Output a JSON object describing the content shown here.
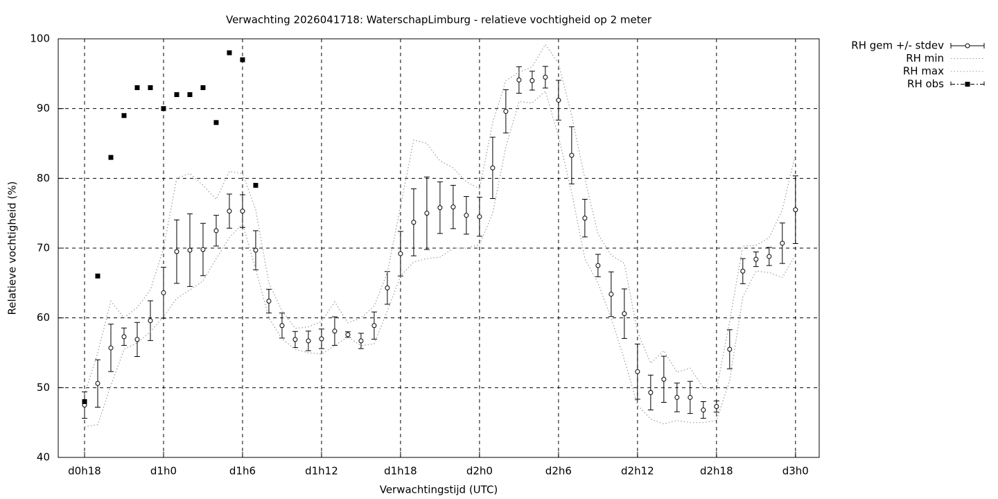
{
  "chart_data": {
    "type": "line",
    "title": "Verwachting 2026041718: WaterschapLimburg - relatieve vochtigheid op 2 meter",
    "x_label": "Verwachtingstijd (UTC)",
    "y_label": "Relatieve vochtigheid (%)",
    "x": [
      18,
      19,
      20,
      21,
      22,
      23,
      24,
      25,
      26,
      27,
      28,
      29,
      30,
      31,
      32,
      33,
      34,
      35,
      36,
      37,
      38,
      39,
      40,
      41,
      42,
      43,
      44,
      45,
      46,
      47,
      48,
      49,
      50,
      51,
      52,
      53,
      54,
      55,
      56,
      57,
      58,
      59,
      60,
      61,
      62,
      63,
      64,
      65,
      66,
      67,
      68,
      69,
      70,
      71,
      72
    ],
    "series": [
      {
        "name": "RH gem +/- stdev",
        "style": "errorbars",
        "color": "#000000",
        "values": [
          47.5,
          50.6,
          55.7,
          57.3,
          56.9,
          59.6,
          63.6,
          69.5,
          69.7,
          69.8,
          72.5,
          75.3,
          75.3,
          69.7,
          62.4,
          58.9,
          56.9,
          56.7,
          57,
          58.1,
          57.6,
          56.7,
          58.9,
          64.3,
          69.2,
          73.7,
          75,
          75.8,
          75.9,
          74.7,
          74.5,
          81.5,
          89.6,
          94.1,
          94,
          94.5,
          91.2,
          83.3,
          74.3,
          67.5,
          63.4,
          60.6,
          52.3,
          49.3,
          51.2,
          48.6,
          48.6,
          46.8,
          47.3,
          55.5,
          66.7,
          68.4,
          68.8,
          70.7,
          75.5
        ],
        "errors": [
          1.9,
          3.4,
          3.4,
          1.25,
          2.45,
          2.85,
          3.65,
          4.55,
          5.2,
          3.75,
          2.2,
          2.45,
          2.35,
          2.8,
          1.7,
          1.8,
          1.15,
          1.4,
          1.4,
          2.05,
          0.4,
          1.1,
          1.95,
          2.35,
          3.2,
          4.8,
          5.2,
          3.7,
          3.1,
          2.7,
          2.8,
          4.4,
          3.1,
          1.9,
          1.35,
          1.55,
          2.85,
          4.1,
          2.7,
          1.6,
          3.2,
          3.55,
          3.95,
          2.5,
          3.3,
          2.05,
          2.3,
          1.2,
          0.8,
          2.8,
          1.8,
          1.05,
          1.3,
          2.9,
          4.85
        ]
      },
      {
        "name": "RH min",
        "style": "dotted",
        "color": "#999999",
        "values": [
          44.4,
          44.7,
          50.3,
          55.5,
          56.4,
          58,
          60.2,
          62.8,
          64,
          65.3,
          68.5,
          71.5,
          73.5,
          67,
          60,
          57,
          55.5,
          55,
          54.8,
          56,
          57.3,
          56,
          56.3,
          61,
          66,
          68,
          68.5,
          68.7,
          70,
          70,
          70.5,
          75,
          84.5,
          91,
          90.8,
          92.5,
          86,
          78,
          68.5,
          65,
          60,
          54,
          47.5,
          45.5,
          44.8,
          45.3,
          45,
          45,
          45.3,
          51,
          63,
          66.7,
          66.5,
          65.8,
          69
        ]
      },
      {
        "name": "RH max",
        "style": "dotted",
        "color": "#999999",
        "values": [
          49,
          55,
          62.4,
          60,
          61.5,
          64,
          70,
          80,
          80.7,
          79,
          77,
          81,
          80.7,
          75.5,
          65,
          61,
          58.5,
          58.7,
          59.5,
          62.3,
          59.3,
          60,
          61.7,
          66.5,
          76,
          85.5,
          85,
          82.5,
          81.5,
          79.5,
          78.5,
          88,
          94,
          95.2,
          96,
          99.2,
          96.5,
          89,
          80,
          72,
          69,
          67.8,
          58,
          53.5,
          55.3,
          52.2,
          52.8,
          50,
          49.7,
          59.5,
          70.3,
          70.4,
          71.5,
          75.5,
          83.5
        ]
      },
      {
        "name": "RH obs",
        "style": "points",
        "color": "#000000",
        "values": [
          48,
          66,
          83,
          89,
          93,
          93,
          90,
          92,
          92,
          93,
          88,
          98,
          97,
          79,
          null,
          null,
          null,
          null,
          null,
          null,
          null,
          null,
          null,
          null,
          null,
          null,
          null,
          null,
          null,
          null,
          null,
          null,
          null,
          null,
          null,
          null,
          null,
          null,
          null,
          null,
          null,
          null,
          null,
          null,
          null,
          null,
          null,
          null,
          null,
          null,
          null,
          null,
          null,
          null,
          null
        ]
      }
    ],
    "xlim": [
      16,
      73.8
    ],
    "ylim": [
      40,
      100
    ],
    "xticks": [
      {
        "value": 18,
        "label": "d0h18"
      },
      {
        "value": 24,
        "label": "d1h0"
      },
      {
        "value": 30,
        "label": "d1h6"
      },
      {
        "value": 36,
        "label": "d1h12"
      },
      {
        "value": 42,
        "label": "d1h18"
      },
      {
        "value": 48,
        "label": "d2h0"
      },
      {
        "value": 54,
        "label": "d2h6"
      },
      {
        "value": 60,
        "label": "d2h12"
      },
      {
        "value": 66,
        "label": "d2h18"
      },
      {
        "value": 72,
        "label": "d3h0"
      }
    ],
    "yticks": [
      40,
      50,
      60,
      70,
      80,
      90,
      100
    ],
    "grid": true,
    "legend": "outside-top-right"
  }
}
